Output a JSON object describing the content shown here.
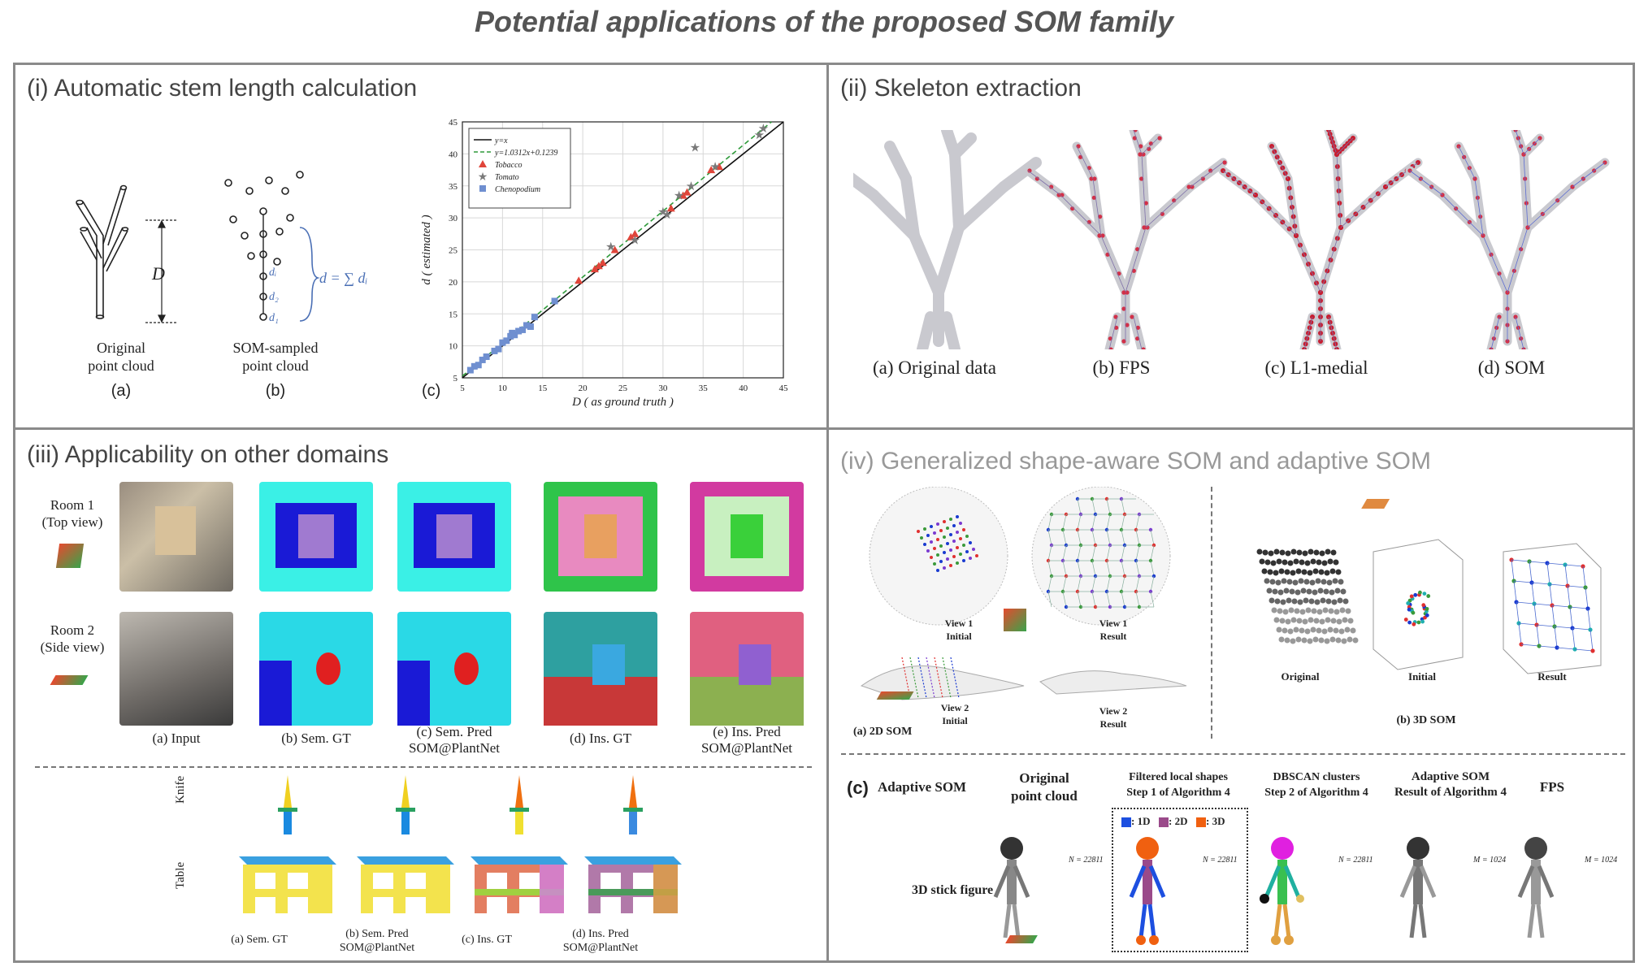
{
  "figure_title": "Potential applications of the proposed SOM family",
  "p1": {
    "title": "(i) Automatic stem length calculation",
    "a_caption": [
      "Original",
      "point cloud"
    ],
    "a_label": "(a)",
    "a_D": "D",
    "b_caption": [
      "SOM-sampled",
      "point cloud"
    ],
    "b_label": "(b)",
    "b_eq": "d = ∑ dᵢ",
    "b_d": [
      "dᵢ",
      "d₂",
      "d₁"
    ],
    "c_label": "(c)"
  },
  "p2": {
    "title": "(ii) Skeleton extraction",
    "captions": [
      "(a) Original data",
      "(b) FPS",
      "(c) L1-medial",
      "(d) SOM"
    ]
  },
  "p3": {
    "title": "(iii) Applicability on other domains",
    "room1": [
      "Room 1",
      "(Top view)"
    ],
    "room2": [
      "Room 2",
      "(Side view)"
    ],
    "captions": [
      [
        "(a) Input",
        ""
      ],
      [
        "(b) Sem. GT",
        ""
      ],
      [
        "(c) Sem. Pred",
        "SOM@PlantNet"
      ],
      [
        "(d) Ins. GT",
        ""
      ],
      [
        "(e) Ins. Pred",
        "SOM@PlantNet"
      ]
    ],
    "knife": "Knife",
    "table": "Table",
    "bottom_captions": [
      [
        "(a) Sem. GT",
        ""
      ],
      [
        "(b) Sem. Pred",
        "SOM@PlantNet"
      ],
      [
        "(c) Ins. GT",
        ""
      ],
      [
        "(d) Ins. Pred",
        "SOM@PlantNet"
      ]
    ]
  },
  "p4": {
    "title": "(iv) Generalized shape-aware SOM and adaptive SOM",
    "view1_initial": [
      "View 1",
      "Initial"
    ],
    "view1_result": [
      "View 1",
      "Result"
    ],
    "view2_initial": [
      "View 2",
      "Initial"
    ],
    "view2_result": [
      "View 2",
      "Result"
    ],
    "a_label": "(a) 2D SOM",
    "b_label": "(b) 3D SOM",
    "b_cols": [
      "Original",
      "Initial",
      "Result"
    ],
    "c_label": "(c)",
    "c_title": "Adaptive SOM",
    "c_cols": [
      [
        "Original",
        "point cloud"
      ],
      [
        "Filtered local shapes",
        "Step 1 of Algorithm 4"
      ],
      [
        "DBSCAN clusters",
        "Step 2 of Algorithm 4"
      ],
      [
        "Adaptive SOM",
        "Result of Algorithm 4"
      ],
      [
        "FPS",
        ""
      ]
    ],
    "legend": [
      ": 1D",
      ": 2D",
      ": 3D"
    ],
    "row_label": "3D stick figure",
    "n_labels": [
      "N = 22811",
      "N = 22811",
      "N = 22811",
      "M = 1024",
      "M = 1024"
    ]
  },
  "chart_data": {
    "type": "scatter",
    "xlabel": "D  ( as ground truth )",
    "ylabel": "d  ( estimated )",
    "xlim": [
      5,
      45
    ],
    "ylim": [
      5,
      45
    ],
    "xticks": [
      5,
      10,
      15,
      20,
      25,
      30,
      35,
      40,
      45
    ],
    "yticks": [
      5,
      10,
      15,
      20,
      25,
      30,
      35,
      40,
      45
    ],
    "grid": true,
    "legend_position": "top-left",
    "lines": [
      {
        "name": "y=x",
        "slope": 1,
        "intercept": 0,
        "color": "#111111",
        "dash": false
      },
      {
        "name": "y=1.0312x+0.1239",
        "slope": 1.0312,
        "intercept": 0.1239,
        "color": "#2e9a3a",
        "dash": true
      }
    ],
    "series": [
      {
        "name": "Tobacco",
        "marker": "triangle",
        "color": "#e0453a",
        "x": [
          19.5,
          21.5,
          22.5,
          24.0,
          26.5,
          31.0,
          32.5,
          33.0,
          36.0,
          37.0,
          22.0,
          26.0
        ],
        "y": [
          20.2,
          22.0,
          23.0,
          25.0,
          27.5,
          31.5,
          33.5,
          34.0,
          37.5,
          38.0,
          22.5,
          27.0
        ]
      },
      {
        "name": "Tomato",
        "marker": "star",
        "color": "#7a7a7a",
        "x": [
          23.5,
          26.5,
          30.5,
          32.0,
          33.5,
          34.0,
          36.5,
          42.0,
          42.5,
          30.0
        ],
        "y": [
          25.5,
          26.5,
          30.5,
          33.5,
          35.0,
          41.0,
          38.0,
          43.0,
          44.0,
          31.0
        ]
      },
      {
        "name": "Chenopodium",
        "marker": "square",
        "color": "#6f8fd0",
        "x": [
          6.0,
          6.5,
          7.0,
          7.5,
          8.0,
          9.5,
          10.0,
          10.5,
          11.0,
          11.5,
          12.0,
          12.5,
          13.0,
          13.5,
          14.0,
          16.5,
          9.0,
          11.2
        ],
        "y": [
          6.2,
          6.8,
          7.0,
          7.8,
          8.3,
          9.5,
          10.5,
          10.8,
          11.5,
          11.7,
          12.3,
          12.5,
          13.2,
          13.0,
          14.5,
          17.0,
          9.2,
          12.0
        ]
      }
    ]
  }
}
